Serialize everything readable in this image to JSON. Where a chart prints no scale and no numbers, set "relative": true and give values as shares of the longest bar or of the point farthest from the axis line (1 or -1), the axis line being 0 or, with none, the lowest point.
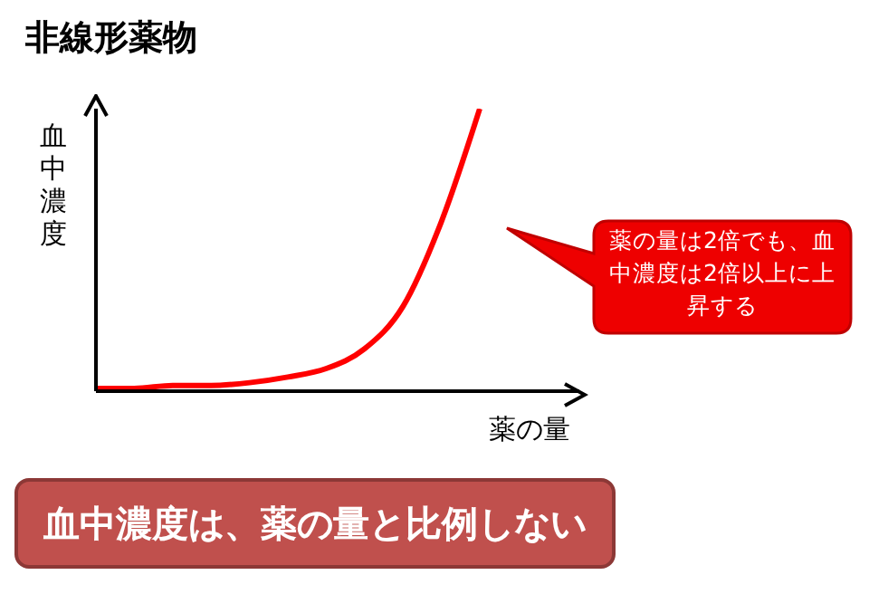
{
  "chart_data": {
    "type": "line",
    "title": "非線形薬物",
    "xlabel": "薬の量",
    "ylabel": "血中濃度",
    "relative": true,
    "categories": [
      null,
      null,
      null,
      null,
      null,
      null,
      null,
      null,
      null,
      null,
      null
    ],
    "series": [
      {
        "color": "#ff0000",
        "values": [
          0.01,
          0.01,
          0.02,
          0.02,
          0.03,
          0.05,
          0.08,
          0.15,
          0.3,
          0.6,
          1
        ]
      }
    ],
    "annotations": [
      "薬の量は2倍でも、血中濃度は2倍以上に上昇する",
      "血中濃度は、薬の量と比例しない"
    ],
    "grid": false,
    "legend": false,
    "marker": "none",
    "line_style": "solid"
  }
}
